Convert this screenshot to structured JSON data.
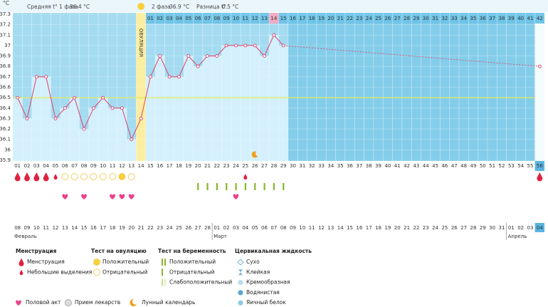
{
  "header": {
    "unit": "°C",
    "phase1_label": "Средняя t° 1 фаза",
    "phase1_value": "36.4 °C",
    "phase2_label": "2 фаза",
    "phase2_value": "36.9 °C",
    "diff_label": "Разница t°",
    "diff_value": "0.5 °C"
  },
  "chart_data": {
    "type": "line",
    "ylim": [
      35.9,
      37.3
    ],
    "yticks": [
      35.9,
      36,
      36.1,
      36.2,
      36.3,
      36.4,
      36.5,
      36.6,
      36.7,
      36.8,
      36.9,
      37,
      37.1,
      37.2,
      37.3
    ],
    "color": "#e0406a",
    "coverline": 36.5,
    "coverline_color": "#e6ea5a",
    "cycle_days": [
      "01",
      "02",
      "03",
      "04",
      "05",
      "06",
      "07",
      "08",
      "09",
      "10",
      "11",
      "12",
      "13",
      "14",
      "15",
      "16",
      "17",
      "18",
      "19",
      "20",
      "21",
      "22",
      "23",
      "24",
      "25",
      "26",
      "27",
      "28",
      "29",
      "30",
      "31",
      "32",
      "33",
      "34",
      "35",
      "36",
      "37",
      "38",
      "39",
      "40",
      "41",
      "42",
      "43",
      "44",
      "45",
      "46",
      "47",
      "48",
      "49",
      "50",
      "51",
      "52",
      "53",
      "54",
      "55",
      "56"
    ],
    "values": [
      36.5,
      36.3,
      36.7,
      36.7,
      36.3,
      36.4,
      36.5,
      36.2,
      36.4,
      36.5,
      36.4,
      36.4,
      36.1,
      36.3,
      36.7,
      36.9,
      36.7,
      36.7,
      36.9,
      36.8,
      36.9,
      36.9,
      37,
      37,
      37,
      37,
      36.9,
      37.1,
      37,
      null,
      null,
      null,
      null,
      null,
      null,
      null,
      null,
      null,
      null,
      null,
      null,
      null,
      null,
      null,
      null,
      null,
      null,
      null,
      null,
      null,
      null,
      null,
      null,
      null,
      null,
      36.8
    ],
    "ovulation_day": 13,
    "ovulation_label": "ОВУЛЯЦИЯ",
    "post_ovulation_days": [
      "01",
      "02",
      "03",
      "04",
      "05",
      "06",
      "07",
      "08",
      "09",
      "10",
      "11",
      "12",
      "13",
      "14",
      "15",
      "16",
      "17",
      "18",
      "19",
      "20",
      "21",
      "22",
      "23",
      "24",
      "25",
      "26",
      "27",
      "28",
      "29",
      "30",
      "31",
      "32",
      "33",
      "34",
      "35",
      "36",
      "37",
      "38",
      "39",
      "40",
      "41",
      "42"
    ],
    "highlight_post_day": 13,
    "today": 55,
    "dates": [
      "08",
      "09",
      "10",
      "11",
      "12",
      "13",
      "14",
      "15",
      "16",
      "17",
      "18",
      "19",
      "20",
      "21",
      "22",
      "23",
      "24",
      "25",
      "26",
      "27",
      "28",
      "01",
      "02",
      "03",
      "04",
      "05",
      "06",
      "07",
      "08",
      "09",
      "10",
      "11",
      "12",
      "13",
      "14",
      "15",
      "16",
      "17",
      "18",
      "19",
      "20",
      "21",
      "22",
      "23",
      "24",
      "25",
      "26",
      "27",
      "28",
      "29",
      "30",
      "31",
      "01",
      "02",
      "03",
      "04"
    ],
    "red_dates": [
      1,
      2,
      8,
      9,
      15,
      16,
      22,
      23,
      29,
      30,
      36,
      37,
      43,
      44,
      50,
      51
    ],
    "months": [
      {
        "label": "Февраль",
        "day": 0
      },
      {
        "label": "Март",
        "day": 21
      },
      {
        "label": "Апрель",
        "day": 52
      }
    ],
    "menstruation": [
      {
        "day": 0,
        "kind": "heavy"
      },
      {
        "day": 1,
        "kind": "heavy"
      },
      {
        "day": 2,
        "kind": "heavy"
      },
      {
        "day": 3,
        "kind": "heavy"
      },
      {
        "day": 4,
        "kind": "light"
      },
      {
        "day": 24,
        "kind": "light"
      },
      {
        "day": 55,
        "kind": "heavy"
      }
    ],
    "ovulation_tests": [
      {
        "day": 5,
        "result": "negative"
      },
      {
        "day": 6,
        "result": "negative"
      },
      {
        "day": 7,
        "result": "negative"
      },
      {
        "day": 8,
        "result": "negative"
      },
      {
        "day": 9,
        "result": "negative"
      },
      {
        "day": 10,
        "result": "negative"
      },
      {
        "day": 11,
        "result": "positive"
      },
      {
        "day": 12,
        "result": "negative"
      }
    ],
    "pregnancy_tests": [
      19,
      20,
      21,
      22,
      23,
      24,
      25,
      26,
      27,
      28
    ],
    "intercourse": [
      5,
      7,
      10,
      11,
      12,
      23
    ],
    "moon": 25
  },
  "legend": {
    "menstruation": {
      "title": "Менструация",
      "items": [
        "Менструация",
        "Небольшие выделения"
      ]
    },
    "ovulation": {
      "title": "Тест на овуляцию",
      "items": [
        "Положительный",
        "Отрицательный"
      ]
    },
    "pregnancy": {
      "title": "Тест на беременность",
      "items": [
        "Положительный",
        "Отрицательный",
        "Слабоположительный"
      ]
    },
    "cervical": {
      "title": "Цервикальная жидкость",
      "items": [
        "Сухо",
        "Клейкая",
        "Кремообразная",
        "Водянистая",
        "Яичный белок"
      ]
    },
    "other": [
      "Половой акт",
      "Прием лекарств",
      "Лунный календарь"
    ]
  }
}
